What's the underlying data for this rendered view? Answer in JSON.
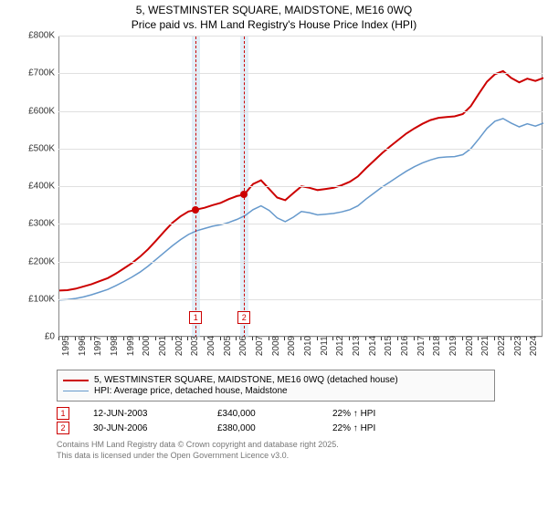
{
  "title_line1": "5, WESTMINSTER SQUARE, MAIDSTONE, ME16 0WQ",
  "title_line2": "Price paid vs. HM Land Registry's House Price Index (HPI)",
  "chart": {
    "type": "line",
    "background_color": "#ffffff",
    "grid_color": "#e0e0e0",
    "axis_color": "#888888",
    "xlim": [
      1995,
      2025
    ],
    "ylim": [
      0,
      800000
    ],
    "yticks": [
      0,
      100000,
      200000,
      300000,
      400000,
      500000,
      600000,
      700000,
      800000
    ],
    "ytick_labels": [
      "£0",
      "£100K",
      "£200K",
      "£300K",
      "£400K",
      "£500K",
      "£600K",
      "£700K",
      "£800K"
    ],
    "xticks": [
      1995,
      1996,
      1997,
      1998,
      1999,
      2000,
      2001,
      2002,
      2003,
      2004,
      2005,
      2006,
      2007,
      2008,
      2009,
      2010,
      2011,
      2012,
      2013,
      2014,
      2015,
      2016,
      2017,
      2018,
      2019,
      2020,
      2021,
      2022,
      2023,
      2024
    ],
    "label_fontsize": 10,
    "title_fontsize": 12,
    "series": [
      {
        "name": "5, WESTMINSTER SQUARE, MAIDSTONE, ME16 0WQ (detached house)",
        "color": "#cc0000",
        "line_width": 2,
        "x": [
          1995,
          1995.5,
          1996,
          1996.5,
          1997,
          1997.5,
          1998,
          1998.5,
          1999,
          1999.5,
          2000,
          2000.5,
          2001,
          2001.5,
          2002,
          2002.5,
          2003,
          2003.3,
          2003.45,
          2004,
          2004.5,
          2005,
          2005.5,
          2006,
          2006.45,
          2007,
          2007.5,
          2008,
          2008.5,
          2009,
          2009.5,
          2010,
          2010.5,
          2011,
          2011.5,
          2012,
          2012.5,
          2013,
          2013.5,
          2014,
          2014.5,
          2015,
          2015.5,
          2016,
          2016.5,
          2017,
          2017.5,
          2018,
          2018.5,
          2019,
          2019.5,
          2020,
          2020.5,
          2021,
          2021.5,
          2022,
          2022.5,
          2023,
          2023.5,
          2024,
          2024.5,
          2025
        ],
        "y": [
          125000,
          126000,
          130000,
          136000,
          142000,
          150000,
          158000,
          170000,
          184000,
          198000,
          215000,
          235000,
          258000,
          282000,
          305000,
          322000,
          335000,
          338000,
          340000,
          345000,
          352000,
          358000,
          368000,
          376000,
          380000,
          408000,
          418000,
          395000,
          372000,
          365000,
          384000,
          402000,
          398000,
          392000,
          395000,
          398000,
          405000,
          414000,
          428000,
          450000,
          470000,
          490000,
          508000,
          525000,
          542000,
          556000,
          568000,
          578000,
          584000,
          586000,
          588000,
          594000,
          615000,
          648000,
          680000,
          700000,
          708000,
          690000,
          678000,
          688000,
          682000,
          690000
        ]
      },
      {
        "name": "HPI: Average price, detached house, Maidstone",
        "color": "#6699cc",
        "line_width": 1.5,
        "x": [
          1995,
          1995.5,
          1996,
          1996.5,
          1997,
          1997.5,
          1998,
          1998.5,
          1999,
          1999.5,
          2000,
          2000.5,
          2001,
          2001.5,
          2002,
          2002.5,
          2003,
          2003.5,
          2004,
          2004.5,
          2005,
          2005.5,
          2006,
          2006.5,
          2007,
          2007.5,
          2008,
          2008.5,
          2009,
          2009.5,
          2010,
          2010.5,
          2011,
          2011.5,
          2012,
          2012.5,
          2013,
          2013.5,
          2014,
          2014.5,
          2015,
          2015.5,
          2016,
          2016.5,
          2017,
          2017.5,
          2018,
          2018.5,
          2019,
          2019.5,
          2020,
          2020.5,
          2021,
          2021.5,
          2022,
          2022.5,
          2023,
          2023.5,
          2024,
          2024.5,
          2025
        ],
        "y": [
          100000,
          101000,
          104000,
          108000,
          114000,
          121000,
          128000,
          138000,
          149000,
          161000,
          174000,
          190000,
          208000,
          226000,
          244000,
          260000,
          274000,
          284000,
          290000,
          296000,
          300000,
          306000,
          314000,
          324000,
          340000,
          350000,
          338000,
          318000,
          308000,
          320000,
          335000,
          332000,
          326000,
          328000,
          330000,
          334000,
          340000,
          350000,
          368000,
          384000,
          400000,
          414000,
          428000,
          442000,
          454000,
          464000,
          472000,
          478000,
          480000,
          481000,
          486000,
          502000,
          528000,
          556000,
          575000,
          582000,
          570000,
          560000,
          568000,
          562000,
          570000
        ]
      }
    ],
    "bands": [
      {
        "x_start": 2003.2,
        "x_end": 2003.7,
        "color": "#cfe2f3"
      },
      {
        "x_start": 2006.2,
        "x_end": 2006.7,
        "color": "#cfe2f3"
      }
    ],
    "vlines": [
      {
        "x": 2003.45,
        "color": "#cc0000"
      },
      {
        "x": 2006.45,
        "color": "#cc0000"
      }
    ],
    "transaction_markers": [
      {
        "n": "1",
        "x": 2003.45,
        "y_box": 70000
      },
      {
        "n": "2",
        "x": 2006.45,
        "y_box": 70000
      }
    ],
    "transaction_points": [
      {
        "x": 2003.45,
        "y": 340000,
        "color": "#cc0000"
      },
      {
        "x": 2006.45,
        "y": 380000,
        "color": "#cc0000"
      }
    ]
  },
  "legend": {
    "items": [
      {
        "color": "#cc0000",
        "width": 2,
        "label": "5, WESTMINSTER SQUARE, MAIDSTONE, ME16 0WQ (detached house)"
      },
      {
        "color": "#6699cc",
        "width": 1.5,
        "label": "HPI: Average price, detached house, Maidstone"
      }
    ]
  },
  "transactions": [
    {
      "n": "1",
      "date": "12-JUN-2003",
      "price": "£340,000",
      "delta": "22% ↑ HPI"
    },
    {
      "n": "2",
      "date": "30-JUN-2006",
      "price": "£380,000",
      "delta": "22% ↑ HPI"
    }
  ],
  "footer_line1": "Contains HM Land Registry data © Crown copyright and database right 2025.",
  "footer_line2": "This data is licensed under the Open Government Licence v3.0."
}
